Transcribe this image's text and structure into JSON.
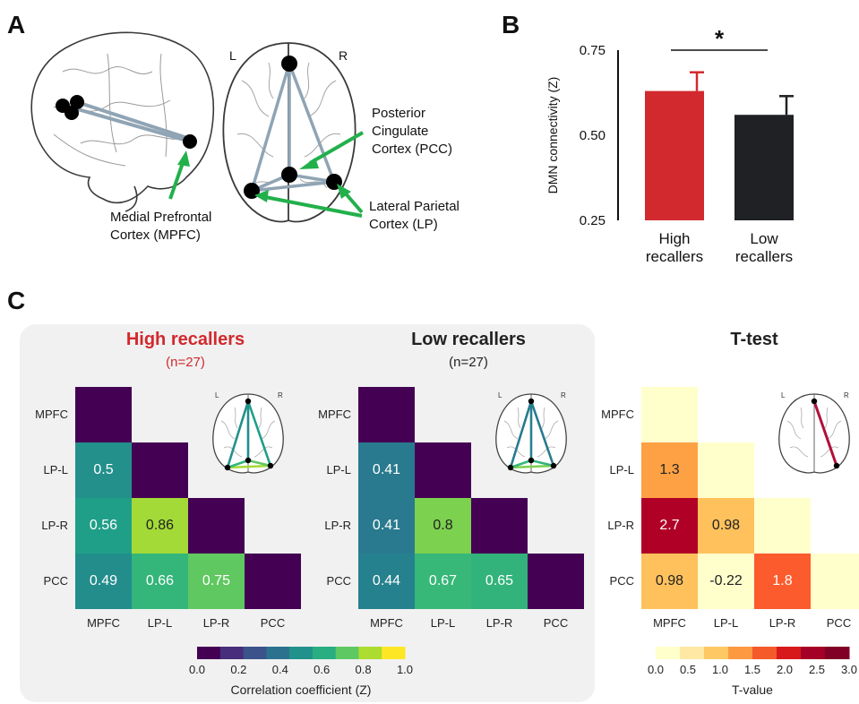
{
  "panels": {
    "a": "A",
    "b": "B",
    "c": "C"
  },
  "panel_a": {
    "hemisphere_left": "L",
    "hemisphere_right": "R",
    "mpfc_label_1": "Medial Prefrontal",
    "mpfc_label_2": "Cortex (MPFC)",
    "pcc_label_1": "Posterior",
    "pcc_label_2": "Cingulate",
    "pcc_label_3": "Cortex (PCC)",
    "lp_label_1": "Lateral Parietal",
    "lp_label_2": "Cortex (LP)",
    "colors": {
      "arrow": "#22b04b",
      "edge": "#8fa4b4",
      "node": "#000000"
    }
  },
  "chart_data": [
    {
      "type": "bar",
      "panel": "B",
      "ylabel": "DMN connectivity (Z)",
      "ylim": [
        0.25,
        0.75
      ],
      "yticks": [
        "0.25",
        "0.50",
        "0.75"
      ],
      "categories": [
        [
          "High",
          "recallers"
        ],
        [
          "Low",
          "recallers"
        ]
      ],
      "values": [
        0.63,
        0.56
      ],
      "errors": [
        0.055,
        0.055
      ],
      "colors": [
        "#d1292d",
        "#1f2124"
      ],
      "significance": "*"
    },
    {
      "type": "heatmap",
      "panel": "C",
      "title": "High recallers",
      "subtitle": "(n=27)",
      "title_color": "#d1292d",
      "rows": [
        "MPFC",
        "LP-L",
        "LP-R",
        "PCC"
      ],
      "cols": [
        "MPFC",
        "LP-L",
        "LP-R",
        "PCC"
      ],
      "cells": [
        {
          "r": 0,
          "c": 0,
          "v": 0,
          "label": ""
        },
        {
          "r": 1,
          "c": 0,
          "v": 0.5,
          "label": "0.5"
        },
        {
          "r": 1,
          "c": 1,
          "v": 0,
          "label": ""
        },
        {
          "r": 2,
          "c": 0,
          "v": 0.56,
          "label": "0.56"
        },
        {
          "r": 2,
          "c": 1,
          "v": 0.86,
          "label": "0.86"
        },
        {
          "r": 2,
          "c": 2,
          "v": 0,
          "label": ""
        },
        {
          "r": 3,
          "c": 0,
          "v": 0.49,
          "label": "0.49"
        },
        {
          "r": 3,
          "c": 1,
          "v": 0.66,
          "label": "0.66"
        },
        {
          "r": 3,
          "c": 2,
          "v": 0.75,
          "label": "0.75"
        },
        {
          "r": 3,
          "c": 3,
          "v": 0,
          "label": ""
        }
      ]
    },
    {
      "type": "heatmap",
      "panel": "C",
      "title": "Low recallers",
      "subtitle": "(n=27)",
      "title_color": "#222222",
      "rows": [
        "MPFC",
        "LP-L",
        "LP-R",
        "PCC"
      ],
      "cols": [
        "MPFC",
        "LP-L",
        "LP-R",
        "PCC"
      ],
      "cells": [
        {
          "r": 0,
          "c": 0,
          "v": 0,
          "label": ""
        },
        {
          "r": 1,
          "c": 0,
          "v": 0.41,
          "label": "0.41"
        },
        {
          "r": 1,
          "c": 1,
          "v": 0,
          "label": ""
        },
        {
          "r": 2,
          "c": 0,
          "v": 0.41,
          "label": "0.41"
        },
        {
          "r": 2,
          "c": 1,
          "v": 0.8,
          "label": "0.8"
        },
        {
          "r": 2,
          "c": 2,
          "v": 0,
          "label": ""
        },
        {
          "r": 3,
          "c": 0,
          "v": 0.44,
          "label": "0.44"
        },
        {
          "r": 3,
          "c": 1,
          "v": 0.67,
          "label": "0.67"
        },
        {
          "r": 3,
          "c": 2,
          "v": 0.65,
          "label": "0.65"
        },
        {
          "r": 3,
          "c": 3,
          "v": 0,
          "label": ""
        }
      ]
    },
    {
      "type": "heatmap",
      "panel": "C",
      "title": "T-test",
      "subtitle": "",
      "title_color": "#222222",
      "rows": [
        "MPFC",
        "LP-L",
        "LP-R",
        "PCC"
      ],
      "cols": [
        "MPFC",
        "LP-L",
        "LP-R",
        "PCC"
      ],
      "cells": [
        {
          "r": 0,
          "c": 0,
          "v": 0,
          "label": ""
        },
        {
          "r": 1,
          "c": 0,
          "v": 1.3,
          "label": "1.3"
        },
        {
          "r": 1,
          "c": 1,
          "v": 0,
          "label": ""
        },
        {
          "r": 2,
          "c": 0,
          "v": 2.7,
          "label": "2.7"
        },
        {
          "r": 2,
          "c": 1,
          "v": 0.98,
          "label": "0.98"
        },
        {
          "r": 2,
          "c": 2,
          "v": 0,
          "label": ""
        },
        {
          "r": 3,
          "c": 0,
          "v": 0.98,
          "label": "0.98"
        },
        {
          "r": 3,
          "c": 1,
          "v": -0.22,
          "label": "-0.22"
        },
        {
          "r": 3,
          "c": 2,
          "v": 1.8,
          "label": "1.8"
        },
        {
          "r": 3,
          "c": 3,
          "v": 0,
          "label": ""
        }
      ]
    }
  ],
  "colorbar_corr": {
    "title": "Correlation coefficient (Z)",
    "ticks": [
      "0.0",
      "0.2",
      "0.4",
      "0.6",
      "0.8",
      "1.0"
    ],
    "colors": [
      "#440154",
      "#472d7b",
      "#3b528b",
      "#2c728e",
      "#21918c",
      "#28ae80",
      "#5ec962",
      "#addc30",
      "#fde725"
    ]
  },
  "colorbar_t": {
    "title": "T-value",
    "ticks": [
      "0.0",
      "0.5",
      "1.0",
      "1.5",
      "2.0",
      "2.5",
      "3.0"
    ],
    "colors": [
      "#ffffcc",
      "#ffe8a4",
      "#fec965",
      "#fd9a41",
      "#f45a2a",
      "#d7191c",
      "#a50026",
      "#800026"
    ]
  },
  "brain_small_labels": {
    "left": "L",
    "right": "R"
  }
}
